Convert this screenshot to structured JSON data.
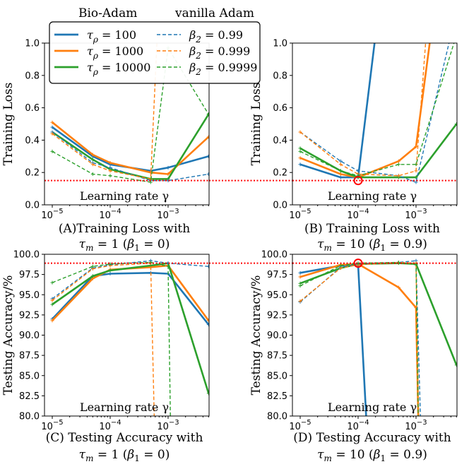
{
  "chart_data": {
    "type": "line",
    "x_ticks": [
      1e-05,
      0.0001,
      0.001
    ],
    "legend": {
      "header_left": "Bio-Adam",
      "header_right": "vanilla Adam",
      "bio": [
        {
          "id": "tau100",
          "label": "τ_ρ = 100",
          "sym": "τ",
          "sub": "ρ",
          "rest": " = 100",
          "color": "#1f77b4"
        },
        {
          "id": "tau1000",
          "label": "τ_ρ = 1000",
          "sym": "τ",
          "sub": "ρ",
          "rest": " = 1000",
          "color": "#ff7f0e"
        },
        {
          "id": "tau10000",
          "label": "τ_ρ = 10000",
          "sym": "τ",
          "sub": "ρ",
          "rest": " = 10000",
          "color": "#2ca02c"
        }
      ],
      "vanilla": [
        {
          "id": "b099",
          "label": "β_2 = 0.99",
          "sym": "β",
          "sub": "2",
          "rest": " = 0.99",
          "color": "#1f77b4"
        },
        {
          "id": "b0999",
          "label": "β_2 = 0.999",
          "sym": "β",
          "sub": "2",
          "rest": " = 0.999",
          "color": "#ff7f0e"
        },
        {
          "id": "b09999",
          "label": "β_2 = 0.9999",
          "sym": "β",
          "sub": "2",
          "rest": " = 0.9999",
          "color": "#2ca02c"
        }
      ]
    },
    "panels": [
      {
        "id": "A",
        "metric": "loss",
        "ylabel": "Training Loss",
        "xlabel": "Learning rate γ",
        "caption_line1": "(A)Training Loss with",
        "caption_line2": "τ_m = 1 (β_1 = 0)",
        "caption2_parts": [
          "τ",
          "m",
          " = 1 (",
          "β",
          "1",
          " = 0)"
        ],
        "ylim": [
          0.0,
          1.0
        ],
        "yticks": [
          0.0,
          0.2,
          0.4,
          0.6,
          0.8,
          1.0
        ],
        "ytick_labels": [
          "0.0",
          "0.2",
          "0.4",
          "0.6",
          "0.8",
          "1.0"
        ],
        "hline": 0.15,
        "marker": null,
        "series": [
          {
            "name": "τ_ρ = 100",
            "color": "#1f77b4",
            "style": "solid",
            "x": [
              1e-05,
              5e-05,
              0.0001,
              0.0005,
              0.001,
              0.005
            ],
            "y": [
              0.48,
              0.3,
              0.25,
              0.21,
              0.23,
              0.3
            ]
          },
          {
            "name": "τ_ρ = 1000",
            "color": "#ff7f0e",
            "style": "solid",
            "x": [
              1e-05,
              5e-05,
              0.0001,
              0.0005,
              0.001,
              0.005
            ],
            "y": [
              0.51,
              0.31,
              0.26,
              0.2,
              0.19,
              0.42
            ]
          },
          {
            "name": "τ_ρ = 10000",
            "color": "#2ca02c",
            "style": "solid",
            "x": [
              1e-05,
              5e-05,
              0.0001,
              0.0005,
              0.001,
              0.005
            ],
            "y": [
              0.45,
              0.28,
              0.22,
              0.16,
              0.16,
              0.56
            ]
          },
          {
            "name": "β_2 = 0.99",
            "color": "#1f77b4",
            "style": "dashed",
            "x": [
              1e-05,
              5e-05,
              0.0001,
              0.0005,
              0.001,
              0.005
            ],
            "y": [
              0.45,
              0.26,
              0.23,
              0.15,
              0.15,
              0.19
            ]
          },
          {
            "name": "β_2 = 0.999",
            "color": "#ff7f0e",
            "style": "dashed",
            "x": [
              1e-05,
              5e-05,
              0.0001,
              0.0005,
              0.00065
            ],
            "y": [
              0.44,
              0.25,
              0.21,
              0.16,
              1.05
            ]
          },
          {
            "name": "β_2 = 0.9999",
            "color": "#2ca02c",
            "style": "dashed",
            "x": [
              1e-05,
              5e-05,
              0.0001,
              0.0005,
              0.001,
              0.005
            ],
            "y": [
              0.33,
              0.19,
              0.18,
              0.14,
              0.97,
              0.56
            ]
          }
        ]
      },
      {
        "id": "B",
        "metric": "loss",
        "ylabel": "Training Loss",
        "xlabel": "Learning rate γ",
        "caption_line1": "(B) Training Loss with",
        "caption_line2": "τ_m = 10 (β_1 = 0.9)",
        "caption2_parts": [
          "τ",
          "m",
          " = 10 (",
          "β",
          "1",
          " = 0.9)"
        ],
        "ylim": [
          0.0,
          1.0
        ],
        "yticks": [
          0.0,
          0.2,
          0.4,
          0.6,
          0.8,
          1.0
        ],
        "ytick_labels": [
          "0.0",
          "0.2",
          "0.4",
          "0.6",
          "0.8",
          "1.0"
        ],
        "hline": 0.15,
        "marker": {
          "x": 0.0001,
          "y": 0.15
        },
        "series": [
          {
            "name": "τ_ρ = 100",
            "color": "#1f77b4",
            "style": "solid",
            "x": [
              1e-05,
              5e-05,
              0.0001,
              0.0002
            ],
            "y": [
              0.25,
              0.17,
              0.17,
              1.05
            ]
          },
          {
            "name": "τ_ρ = 1000",
            "color": "#ff7f0e",
            "style": "solid",
            "x": [
              1e-05,
              5e-05,
              0.0001,
              0.0005,
              0.001,
              0.0018
            ],
            "y": [
              0.29,
              0.19,
              0.17,
              0.27,
              0.36,
              1.05
            ]
          },
          {
            "name": "τ_ρ = 10000",
            "color": "#2ca02c",
            "style": "solid",
            "x": [
              1e-05,
              5e-05,
              0.0001,
              0.0005,
              0.001,
              0.005
            ],
            "y": [
              0.35,
              0.21,
              0.17,
              0.17,
              0.17,
              0.5
            ]
          },
          {
            "name": "β_2 = 0.99",
            "color": "#1f77b4",
            "style": "dashed",
            "x": [
              1e-05,
              5e-05,
              0.0001,
              0.0005,
              0.001,
              0.004
            ],
            "y": [
              0.45,
              0.27,
              0.21,
              0.18,
              0.14,
              1.05
            ]
          },
          {
            "name": "β_2 = 0.999",
            "color": "#ff7f0e",
            "style": "dashed",
            "x": [
              1e-05,
              5e-05,
              0.0001,
              0.0005,
              0.001,
              0.0015
            ],
            "y": [
              0.45,
              0.25,
              0.19,
              0.18,
              0.21,
              1.05
            ]
          },
          {
            "name": "β_2 = 0.9999",
            "color": "#2ca02c",
            "style": "dashed",
            "x": [
              1e-05,
              5e-05,
              0.0001,
              0.0005,
              0.001,
              0.005
            ],
            "y": [
              0.33,
              0.21,
              0.18,
              0.25,
              0.25,
              1.05
            ]
          }
        ]
      },
      {
        "id": "C",
        "metric": "acc",
        "ylabel": "Testing Accuracy/%",
        "xlabel": "Learning rate γ",
        "caption_line1": "(C) Testing Accuracy with",
        "caption_line2": "τ_m = 1 (β_1 = 0)",
        "caption2_parts": [
          "τ",
          "m",
          " = 1 (",
          "β",
          "1",
          " = 0)"
        ],
        "ylim": [
          80.0,
          100.0
        ],
        "yticks": [
          80.0,
          82.5,
          85.0,
          87.5,
          90.0,
          92.5,
          95.0,
          97.5,
          100.0
        ],
        "ytick_labels": [
          "80.0",
          "82.5",
          "85.0",
          "87.5",
          "90.0",
          "92.5",
          "95.0",
          "97.5",
          "100.0"
        ],
        "hline": 98.9,
        "marker": null,
        "series": [
          {
            "name": "τ_ρ = 100",
            "color": "#1f77b4",
            "style": "solid",
            "x": [
              1e-05,
              5e-05,
              0.0001,
              0.0005,
              0.001,
              0.005
            ],
            "y": [
              92.0,
              97.3,
              97.6,
              97.7,
              97.6,
              91.3
            ]
          },
          {
            "name": "τ_ρ = 1000",
            "color": "#ff7f0e",
            "style": "solid",
            "x": [
              1e-05,
              5e-05,
              0.0001,
              0.0005,
              0.001,
              0.005
            ],
            "y": [
              91.8,
              97.0,
              98.1,
              98.4,
              98.6,
              91.8
            ]
          },
          {
            "name": "τ_ρ = 10000",
            "color": "#2ca02c",
            "style": "solid",
            "x": [
              1e-05,
              5e-05,
              0.0001,
              0.0005,
              0.001,
              0.005
            ],
            "y": [
              93.8,
              97.3,
              98.0,
              98.6,
              98.9,
              82.8
            ]
          },
          {
            "name": "β_2 = 0.99",
            "color": "#1f77b4",
            "style": "dashed",
            "x": [
              1e-05,
              5e-05,
              0.0001,
              0.0005,
              0.001,
              0.005
            ],
            "y": [
              94.5,
              98.3,
              98.7,
              99.2,
              98.9,
              98.5
            ]
          },
          {
            "name": "β_2 = 0.999",
            "color": "#ff7f0e",
            "style": "dashed",
            "x": [
              1e-05,
              5e-05,
              0.0001,
              0.0005,
              0.00058
            ],
            "y": [
              94.3,
              98.2,
              98.6,
              98.9,
              79.0
            ]
          },
          {
            "name": "β_2 = 0.9999",
            "color": "#2ca02c",
            "style": "dashed",
            "x": [
              1e-05,
              5e-05,
              0.0001,
              0.0005,
              0.001,
              0.0011
            ],
            "y": [
              96.5,
              98.5,
              98.8,
              99.0,
              98.5,
              79.0
            ]
          }
        ]
      },
      {
        "id": "D",
        "metric": "acc",
        "ylabel": "Testing Accuracy/%",
        "xlabel": "Learning rate γ",
        "caption_line1": "(D) Testing Accuracy with",
        "caption_line2": "τ_m = 10 (β_1 = 0.9)",
        "caption2_parts": [
          "τ",
          "m",
          " = 10 (",
          "β",
          "1",
          " = 0.9)"
        ],
        "ylim": [
          80.0,
          100.0
        ],
        "yticks": [
          80.0,
          82.5,
          85.0,
          87.5,
          90.0,
          92.5,
          95.0,
          97.5,
          100.0
        ],
        "ytick_labels": [
          "80.0",
          "82.5",
          "85.0",
          "87.5",
          "90.0",
          "92.5",
          "95.0",
          "97.5",
          "100.0"
        ],
        "hline": 98.9,
        "marker": {
          "x": 0.0001,
          "y": 98.9
        },
        "series": [
          {
            "name": "τ_ρ = 100",
            "color": "#1f77b4",
            "style": "solid",
            "x": [
              1e-05,
              5e-05,
              0.0001,
              0.00014
            ],
            "y": [
              97.7,
              98.6,
              98.7,
              79.0
            ]
          },
          {
            "name": "τ_ρ = 1000",
            "color": "#ff7f0e",
            "style": "solid",
            "x": [
              1e-05,
              5e-05,
              0.0001,
              0.0005,
              0.001,
              0.0011
            ],
            "y": [
              97.2,
              98.7,
              98.8,
              95.9,
              93.4,
              79.0
            ]
          },
          {
            "name": "τ_ρ = 10000",
            "color": "#2ca02c",
            "style": "solid",
            "x": [
              1e-05,
              5e-05,
              0.0001,
              0.0005,
              0.001,
              0.005
            ],
            "y": [
              96.4,
              98.3,
              98.8,
              98.9,
              98.8,
              86.3
            ]
          },
          {
            "name": "β_2 = 0.99",
            "color": "#1f77b4",
            "style": "dashed",
            "x": [
              1e-05,
              5e-05,
              0.0001,
              0.0005,
              0.001,
              0.0012
            ],
            "y": [
              94.1,
              98.4,
              98.8,
              99.0,
              99.2,
              79.0
            ]
          },
          {
            "name": "β_2 = 0.999",
            "color": "#ff7f0e",
            "style": "dashed",
            "x": [
              1e-05,
              5e-05,
              0.0001,
              0.0005,
              0.001,
              0.0011
            ],
            "y": [
              94.2,
              98.3,
              98.7,
              99.0,
              98.9,
              79.0
            ]
          },
          {
            "name": "β_2 = 0.9999",
            "color": "#2ca02c",
            "style": "dashed",
            "x": [
              1e-05,
              5e-05,
              0.0001,
              0.0005,
              0.001,
              0.0011
            ],
            "y": [
              96.1,
              98.6,
              98.9,
              99.0,
              98.7,
              79.0
            ]
          }
        ]
      }
    ]
  },
  "colors": {
    "reference_line": "#ff0000",
    "marker": "#ff0000",
    "axis": "#000000"
  }
}
